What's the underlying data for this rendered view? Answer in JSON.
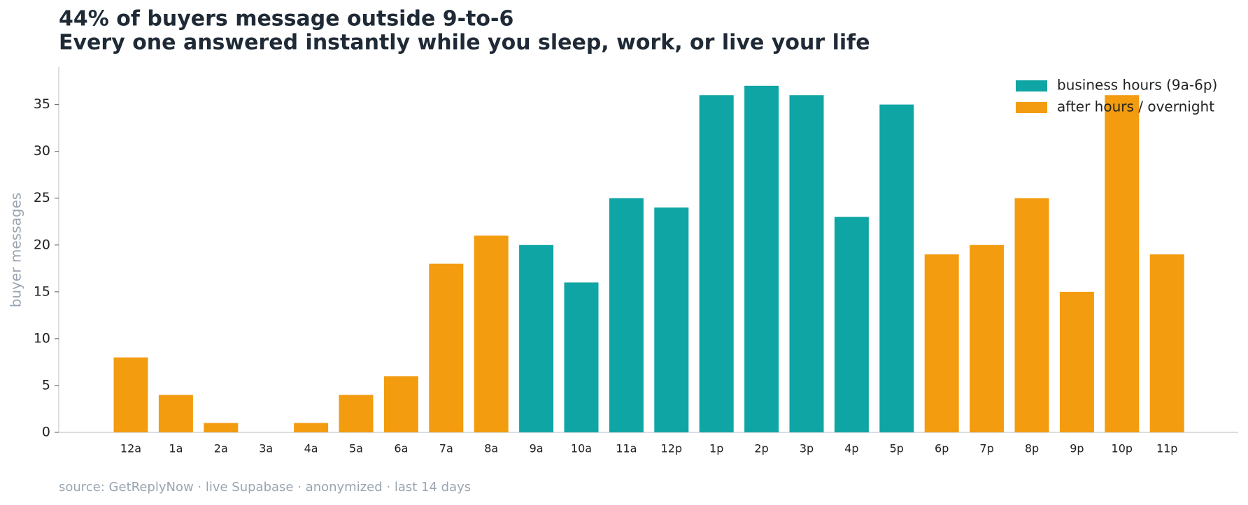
{
  "chart_data": {
    "type": "bar",
    "title": "44% of buyers message outside 9-to-6",
    "subtitle": "Every one answered instantly while you sleep, work, or live your life",
    "y_label": "buyer messages",
    "source": "source: GetReplyNow · live Supabase · anonymized · last 14 days",
    "categories": [
      "12a",
      "1a",
      "2a",
      "3a",
      "4a",
      "5a",
      "6a",
      "7a",
      "8a",
      "9a",
      "10a",
      "11a",
      "12p",
      "1p",
      "2p",
      "3p",
      "4p",
      "5p",
      "6p",
      "7p",
      "8p",
      "9p",
      "10p",
      "11p"
    ],
    "series": [
      {
        "name": "business hours (9a-6p)",
        "color": "#10a5a5",
        "values": [
          null,
          null,
          null,
          null,
          null,
          null,
          null,
          null,
          null,
          20,
          16,
          25,
          24,
          36,
          37,
          36,
          23,
          35,
          null,
          null,
          null,
          null,
          null,
          null
        ]
      },
      {
        "name": "after hours / overnight",
        "color": "#f39c0f",
        "values": [
          8,
          4,
          1,
          0,
          1,
          4,
          6,
          18,
          21,
          null,
          null,
          null,
          null,
          null,
          null,
          null,
          null,
          null,
          19,
          20,
          25,
          15,
          36,
          19
        ]
      }
    ],
    "ylim": [
      0,
      39
    ],
    "yticks": [
      0,
      5,
      10,
      15,
      20,
      25,
      30,
      35
    ],
    "grid": false,
    "legend": "upper right"
  }
}
